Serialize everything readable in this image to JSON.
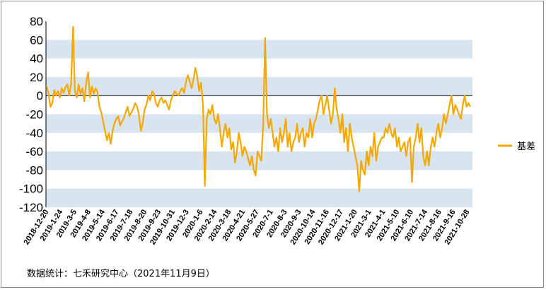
{
  "chart_data": {
    "type": "line",
    "title": "",
    "xlabel": "",
    "ylabel": "",
    "ylim": [
      -120,
      80
    ],
    "yticks": [
      80,
      60,
      40,
      20,
      0,
      -20,
      -40,
      -60,
      -80,
      -100,
      -120
    ],
    "ytick_labels": [
      "80",
      "60",
      "40",
      "20",
      "0",
      "-20",
      "-40",
      "-60",
      "-80",
      "-100",
      "-120"
    ],
    "xtick_labels": [
      "2018-12-20",
      "2019-1-24",
      "2019-3-5",
      "2019-4-8",
      "2019-5-14",
      "2019-6-17",
      "2019-7-18",
      "2019-8-20",
      "2019-9-23",
      "2019-10-31",
      "2019-12-3",
      "2020-1-6",
      "2020-2-14",
      "2020-3-18",
      "2020-4-21",
      "2020-5-27",
      "2020-7-1",
      "2020-8-3",
      "2020-9-3",
      "2020-10-14",
      "2020-11-16",
      "2020-12-17",
      "2021-1-20",
      "2021-3-1",
      "2021-4-1",
      "2021-5-10",
      "2021-6-10",
      "2021-7-14",
      "2021-8-16",
      "2021-9-16",
      "2021-10-28"
    ],
    "grid": "alternating horizontal bands",
    "legend_position": "right",
    "series": [
      {
        "name": "基差",
        "color": "#f5a800",
        "values": [
          10,
          2,
          -12,
          -8,
          6,
          0,
          5,
          -2,
          8,
          3,
          9,
          12,
          0,
          13,
          74,
          5,
          -2,
          12,
          2,
          8,
          -6,
          14,
          25,
          -2,
          10,
          2,
          8,
          4,
          -12,
          -18,
          -28,
          -38,
          -48,
          -40,
          -52,
          -38,
          -30,
          -25,
          -22,
          -32,
          -28,
          -24,
          -18,
          -12,
          -22,
          -18,
          -14,
          -8,
          -12,
          -20,
          -38,
          -30,
          -15,
          -10,
          0,
          -5,
          5,
          2,
          -8,
          -12,
          -5,
          -2,
          -8,
          -5,
          -10,
          -15,
          -5,
          0,
          5,
          2,
          0,
          5,
          8,
          3,
          15,
          22,
          15,
          8,
          18,
          30,
          20,
          5,
          14,
          -10,
          -97,
          -25,
          -15,
          -20,
          -10,
          -25,
          -30,
          -20,
          -35,
          -55,
          -40,
          -30,
          -45,
          -35,
          -58,
          -50,
          -72,
          -60,
          -40,
          -50,
          -65,
          -55,
          -60,
          -68,
          -75,
          -65,
          -80,
          -86,
          -60,
          -65,
          -70,
          -30,
          62,
          -20,
          -35,
          -25,
          -40,
          -55,
          -45,
          -60,
          -35,
          -50,
          -40,
          -25,
          -55,
          -40,
          -60,
          -50,
          -45,
          -30,
          -50,
          -40,
          -35,
          -55,
          -40,
          -45,
          -25,
          -45,
          -30,
          -25,
          -15,
          -5,
          0,
          -20,
          -10,
          0,
          -15,
          -30,
          -20,
          8,
          -15,
          -25,
          -40,
          -20,
          -50,
          -35,
          -60,
          -30,
          -45,
          -55,
          -65,
          -75,
          -103,
          -70,
          -80,
          -85,
          -60,
          -75,
          -55,
          -65,
          -40,
          -70,
          -55,
          -50,
          -45,
          -45,
          -35,
          -40,
          -30,
          -40,
          -45,
          -35,
          -55,
          -45,
          -60,
          -55,
          -50,
          -65,
          -50,
          -45,
          -93,
          -55,
          -45,
          -30,
          -50,
          -35,
          -65,
          -75,
          -60,
          -75,
          -55,
          -45,
          -55,
          -40,
          -30,
          -45,
          -35,
          -20,
          -30,
          -20,
          -10,
          0,
          -20,
          -10,
          -15,
          -20,
          -25,
          -10,
          0,
          -12,
          -8,
          -12
        ]
      }
    ]
  },
  "source_note": "数据统计：七禾研究中心（2021年11月9日）"
}
